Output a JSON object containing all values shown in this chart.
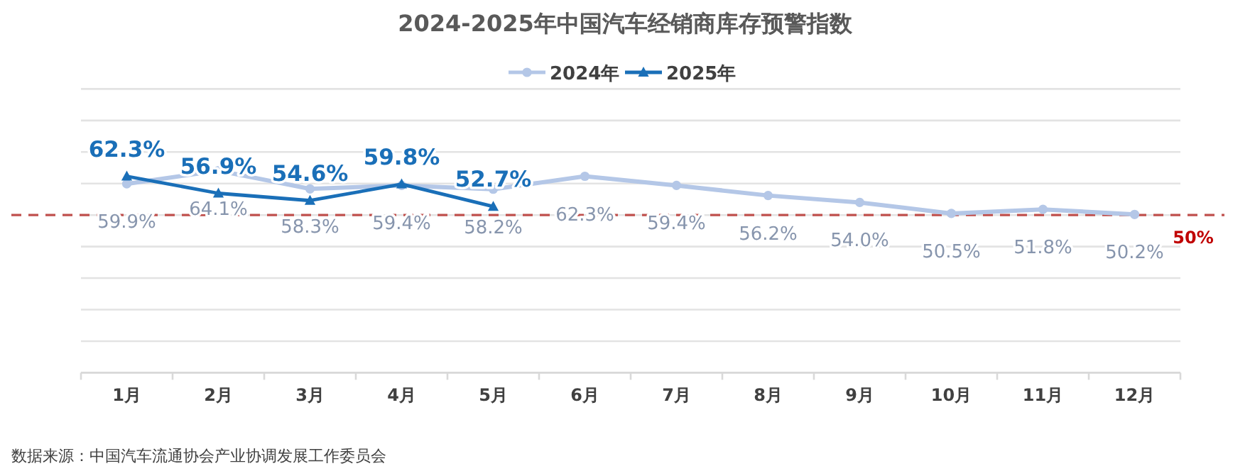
{
  "chart_data": {
    "type": "line",
    "title": "2024-2025年中国汽车经销商库存预警指数",
    "categories": [
      "1月",
      "2月",
      "3月",
      "4月",
      "5月",
      "6月",
      "7月",
      "8月",
      "9月",
      "10月",
      "11月",
      "12月"
    ],
    "series": [
      {
        "name": "2024年",
        "color": "#b4c7e7",
        "marker": "circle",
        "values": [
          59.9,
          64.1,
          58.3,
          59.4,
          58.2,
          62.3,
          59.4,
          56.2,
          54.0,
          50.5,
          51.8,
          50.2
        ],
        "value_labels": [
          "59.9%",
          "64.1%",
          "58.3%",
          "59.4%",
          "58.2%",
          "62.3%",
          "59.4%",
          "56.2%",
          "54.0%",
          "50.5%",
          "51.8%",
          "50.2%"
        ]
      },
      {
        "name": "2025年",
        "color": "#1a6fb8",
        "marker": "triangle",
        "values": [
          62.3,
          56.9,
          54.6,
          59.8,
          52.7,
          null,
          null,
          null,
          null,
          null,
          null,
          null
        ],
        "value_labels": [
          "62.3%",
          "56.9%",
          "54.6%",
          "59.8%",
          "52.7%",
          null,
          null,
          null,
          null,
          null,
          null,
          null
        ]
      }
    ],
    "ylim": [
      0,
      90
    ],
    "yticks": [
      {
        "value": 0,
        "label": null
      },
      {
        "value": 10,
        "label": null
      },
      {
        "value": 20,
        "label": null
      },
      {
        "value": 30,
        "label": null
      },
      {
        "value": 40,
        "label": null
      },
      {
        "value": 50,
        "label": null
      },
      {
        "value": 60,
        "label": null
      },
      {
        "value": 70,
        "label": null
      },
      {
        "value": 80,
        "label": null
      },
      {
        "value": 90,
        "label": null
      }
    ],
    "grid": "y",
    "legend": "top",
    "line_style": "solid",
    "ref_lines": [
      {
        "axis": "y",
        "value": 50,
        "label": "50%",
        "color": "#c0504d",
        "line_style": "dashed"
      }
    ],
    "annotations": [
      "数据来源：中国汽车流通协会产业协调发展工作委员会"
    ]
  }
}
